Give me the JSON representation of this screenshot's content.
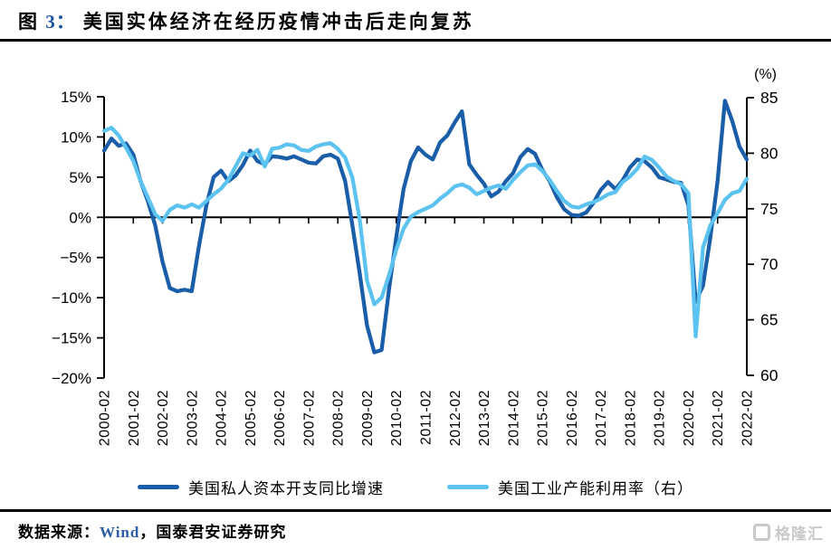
{
  "title": {
    "figure_prefix": "图",
    "figure_number": "3：",
    "text": "美国实体经济在经历疫情冲击后走向复苏"
  },
  "chart_data": {
    "type": "line",
    "title": "美国实体经济在经历疫情冲击后走向复苏",
    "legend_position": "bottom",
    "grid": false,
    "left_axis": {
      "min": -20,
      "max": 15,
      "ticks": [
        {
          "v": 15,
          "label": "15%"
        },
        {
          "v": 10,
          "label": "10%"
        },
        {
          "v": 5,
          "label": "5%"
        },
        {
          "v": 0,
          "label": "0%"
        },
        {
          "v": -5,
          "label": "−5%"
        },
        {
          "v": -10,
          "label": "−10%"
        },
        {
          "v": -15,
          "label": "−15%"
        },
        {
          "v": -20,
          "label": "−20%"
        }
      ]
    },
    "right_axis": {
      "min": 60,
      "max": 85,
      "header": "(%)",
      "ticks": [
        {
          "v": 85,
          "label": "85"
        },
        {
          "v": 80,
          "label": "80"
        },
        {
          "v": 75,
          "label": "75"
        },
        {
          "v": 70,
          "label": "70"
        },
        {
          "v": 65,
          "label": "65"
        },
        {
          "v": 60,
          "label": "60"
        }
      ]
    },
    "x_ticks": [
      "2000-02",
      "2001-02",
      "2002-02",
      "2003-02",
      "2004-02",
      "2005-02",
      "2006-02",
      "2007-02",
      "2008-02",
      "2009-02",
      "2010-02",
      "2011-02",
      "2012-02",
      "2013-02",
      "2014-02",
      "2015-02",
      "2016-02",
      "2017-02",
      "2018-02",
      "2019-02",
      "2020-02",
      "2021-02",
      "2022-02"
    ],
    "sampling": "quarterly from 2000-02 to 2022-02",
    "series": [
      {
        "name": "美国私人资本开支同比增速",
        "axis": "left",
        "color": "#1a5da8",
        "values": [
          8.3,
          9.8,
          8.9,
          9.2,
          7.8,
          4.5,
          2.0,
          -1.0,
          -5.5,
          -8.8,
          -9.2,
          -9.0,
          -9.2,
          -3.5,
          1.5,
          5.0,
          5.8,
          4.5,
          5.2,
          6.5,
          8.3,
          7.0,
          6.6,
          7.6,
          7.5,
          7.3,
          7.6,
          7.2,
          6.8,
          6.7,
          7.6,
          7.8,
          7.3,
          4.5,
          -1.0,
          -7.0,
          -13.5,
          -16.8,
          -16.5,
          -9.0,
          -2.5,
          3.5,
          7.0,
          8.7,
          7.8,
          7.2,
          9.3,
          10.2,
          11.8,
          13.2,
          6.6,
          5.3,
          4.2,
          2.6,
          3.2,
          4.5,
          5.5,
          7.5,
          8.5,
          7.9,
          5.9,
          4.5,
          2.5,
          1.0,
          0.3,
          0.2,
          0.6,
          1.8,
          3.4,
          4.4,
          3.5,
          4.6,
          6.2,
          7.2,
          7.0,
          6.2,
          5.0,
          4.7,
          4.4,
          4.3,
          1.5,
          -10.5,
          -8.5,
          -2.5,
          4.5,
          14.5,
          12.0,
          8.8,
          7.2
        ]
      },
      {
        "name": "美国工业产能利用率（右）",
        "axis": "right",
        "color": "#5cc3f0",
        "values": [
          82.0,
          82.3,
          81.6,
          80.5,
          79.3,
          77.5,
          76.0,
          74.5,
          73.9,
          74.9,
          75.3,
          75.1,
          75.4,
          75.1,
          75.7,
          76.3,
          76.8,
          77.6,
          78.8,
          80.0,
          79.8,
          80.3,
          78.8,
          80.4,
          80.5,
          80.8,
          80.7,
          80.3,
          80.2,
          80.6,
          80.8,
          80.9,
          80.4,
          79.6,
          77.8,
          74.0,
          68.5,
          66.4,
          67.0,
          69.0,
          71.3,
          73.2,
          74.3,
          74.7,
          75.0,
          75.3,
          75.9,
          76.4,
          77.0,
          77.2,
          76.9,
          76.3,
          76.6,
          76.9,
          77.1,
          76.8,
          77.6,
          78.3,
          78.9,
          79.0,
          78.4,
          77.6,
          76.6,
          75.7,
          75.2,
          75.1,
          75.4,
          75.6,
          75.9,
          76.3,
          76.5,
          77.4,
          77.9,
          78.6,
          79.7,
          79.4,
          78.7,
          77.9,
          77.5,
          77.2,
          76.4,
          63.5,
          71.5,
          73.5,
          74.6,
          75.8,
          76.4,
          76.6,
          77.7
        ]
      }
    ]
  },
  "footer": {
    "source_prefix": "数据来源：",
    "source_wind": "Wind",
    "source_rest": "，国泰君安证券研究"
  },
  "watermark": {
    "text": "格隆汇"
  }
}
